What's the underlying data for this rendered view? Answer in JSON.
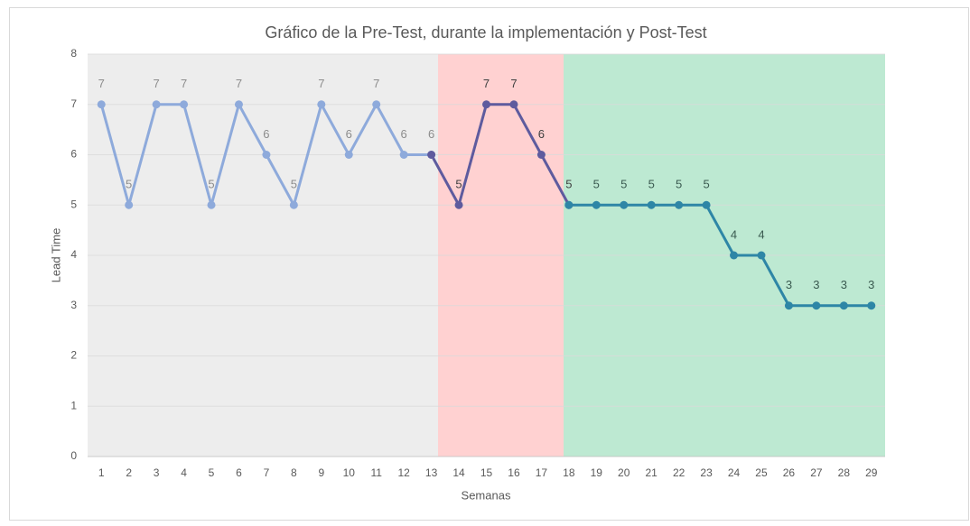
{
  "chart_data": {
    "type": "line",
    "title": "Gráfico de la Pre-Test, durante la implementación y Post-Test",
    "x_label": "Semanas",
    "y_label": "Lead Time",
    "categories": [
      1,
      2,
      3,
      4,
      5,
      6,
      7,
      8,
      9,
      10,
      11,
      12,
      13,
      14,
      15,
      16,
      17,
      18,
      19,
      20,
      21,
      22,
      23,
      24,
      25,
      26,
      27,
      28,
      29
    ],
    "series": [
      {
        "color": "#8eaadb",
        "values": [
          7,
          5,
          7,
          7,
          5,
          7,
          6,
          5,
          7,
          6,
          7,
          6,
          6,
          null,
          null,
          null,
          null,
          null,
          null,
          null,
          null,
          null,
          null,
          null,
          null,
          null,
          null,
          null,
          null
        ]
      },
      {
        "color": "#5e5b9e",
        "values": [
          null,
          null,
          null,
          null,
          null,
          null,
          null,
          null,
          null,
          null,
          null,
          null,
          6,
          5,
          7,
          7,
          6,
          5,
          null,
          null,
          null,
          null,
          null,
          null,
          null,
          null,
          null,
          null,
          null
        ]
      },
      {
        "color": "#2e86a6",
        "values": [
          null,
          null,
          null,
          null,
          null,
          null,
          null,
          null,
          null,
          null,
          null,
          null,
          null,
          null,
          null,
          null,
          null,
          5,
          5,
          5,
          5,
          5,
          5,
          4,
          4,
          3,
          3,
          3,
          3
        ]
      }
    ],
    "ylim": [
      0,
      8
    ],
    "yticks": [
      0,
      1,
      2,
      3,
      4,
      5,
      6,
      7,
      8
    ],
    "grid": true
  }
}
